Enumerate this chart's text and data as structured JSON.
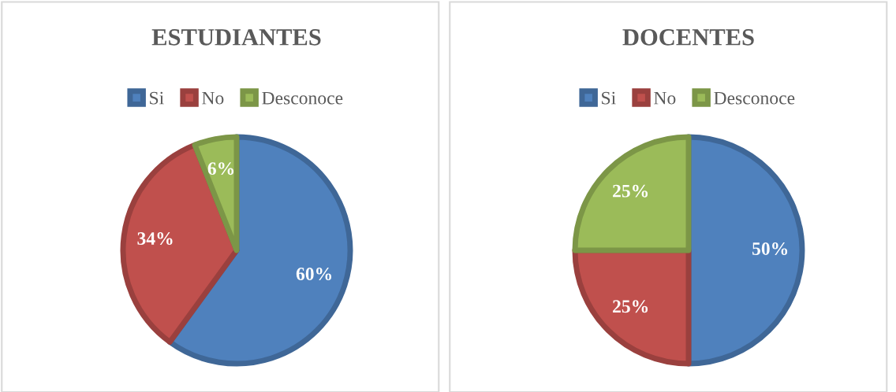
{
  "chart_data": [
    {
      "type": "pie",
      "title": "ESTUDIANTES",
      "categories": [
        "Si",
        "No",
        "Desconoce"
      ],
      "values": [
        60,
        34,
        6
      ],
      "colors": [
        "#4f81bd",
        "#c0504d",
        "#9bbb59"
      ],
      "value_labels": [
        "60%",
        "34%",
        "6%"
      ],
      "legend": "top"
    },
    {
      "type": "pie",
      "title": "DOCENTES",
      "categories": [
        "Si",
        "No",
        "Desconoce"
      ],
      "values": [
        50,
        25,
        25
      ],
      "colors": [
        "#4f81bd",
        "#c0504d",
        "#9bbb59"
      ],
      "value_labels": [
        "50%",
        "25%",
        "25%"
      ],
      "legend": "top"
    }
  ]
}
